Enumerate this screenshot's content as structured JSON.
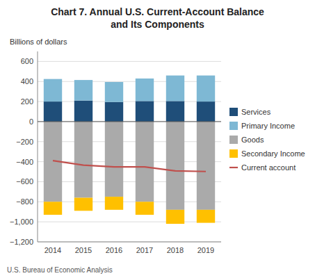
{
  "chart_data": {
    "type": "bar",
    "title": "Chart 7. Annual U.S. Current-Account Balance\nand Its Components",
    "ylabel": "Billions of dollars",
    "source": "U.S. Bureau of Economic Analysis",
    "categories": [
      "2014",
      "2015",
      "2016",
      "2017",
      "2018",
      "2019"
    ],
    "stacked": true,
    "grid": true,
    "legend": "right",
    "series": [
      {
        "name": "Services",
        "type": "bar",
        "color": "#1F4E79",
        "values": [
          200,
          210,
          195,
          205,
          205,
          200
        ]
      },
      {
        "name": "Primary Income",
        "type": "bar",
        "color": "#7EB8D4",
        "values": [
          225,
          205,
          200,
          225,
          255,
          260
        ]
      },
      {
        "name": "Goods",
        "type": "bar",
        "color": "#AAAAAA",
        "values": [
          -800,
          -760,
          -750,
          -800,
          -880,
          -880
        ]
      },
      {
        "name": "Secondary Income",
        "type": "bar",
        "color": "#FFC000",
        "values": [
          -130,
          -130,
          -130,
          -130,
          -140,
          -130
        ]
      },
      {
        "name": "Current account",
        "type": "line",
        "color": "#C0504D",
        "values": [
          -390,
          -435,
          -452,
          -452,
          -492,
          -498
        ]
      }
    ],
    "ylim": [
      -1200,
      700
    ],
    "yticks": [
      {
        "value": -1200,
        "label": "−1,200"
      },
      {
        "value": -1000,
        "label": "−1,000"
      },
      {
        "value": -800,
        "label": "−800"
      },
      {
        "value": -600,
        "label": "−600"
      },
      {
        "value": -400,
        "label": "−400"
      },
      {
        "value": -200,
        "label": "−200"
      },
      0,
      200,
      400,
      600
    ]
  }
}
